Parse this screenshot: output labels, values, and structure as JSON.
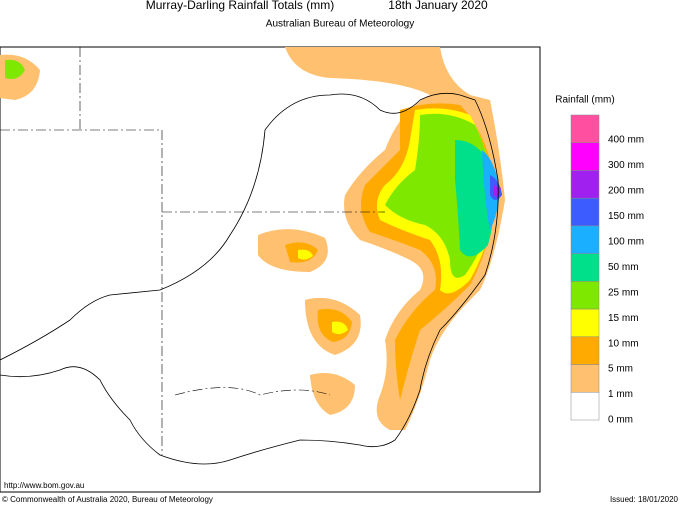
{
  "header": {
    "title": "Murray-Darling Rainfall Totals (mm)",
    "date": "18th January 2020",
    "subtitle": "Australian Bureau of Meteorology"
  },
  "legend": {
    "title": "Rainfall (mm)",
    "labels": [
      "400 mm",
      "300 mm",
      "200 mm",
      "150 mm",
      "100 mm",
      "50 mm",
      "25 mm",
      "15 mm",
      "10 mm",
      "5 mm",
      "1 mm",
      "0 mm"
    ],
    "colors": [
      "#ff4fa0",
      "#ff00ff",
      "#a020f0",
      "#3c5cff",
      "#1ab0ff",
      "#00e08a",
      "#7ee800",
      "#ffff00",
      "#ffaa00",
      "#ffc070",
      "#ffffff"
    ]
  },
  "footer": {
    "url": "http://www.bom.gov.au",
    "copyright": "© Commonwealth of Australia 2020, Bureau of Meteorology",
    "issued": "Issued: 18/01/2020"
  }
}
